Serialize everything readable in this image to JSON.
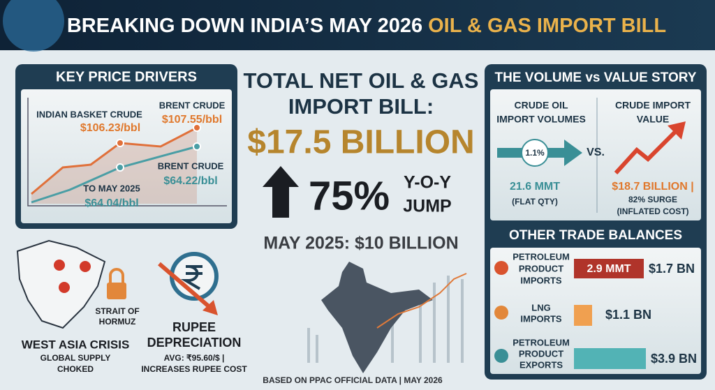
{
  "header": {
    "title": "BREAKING DOWN INDIA’S MAY 2026",
    "title_highlight": "OIL & GAS IMPORT BILL"
  },
  "price_drivers": {
    "title": "KEY PRICE DRIVERS",
    "indian_basket": {
      "label": "INDIAN BASKET CRUDE",
      "price": "$106.23/bbl"
    },
    "brent_now": {
      "label": "BRENT CRUDE",
      "price": "$107.55/bbl"
    },
    "brent_prev": {
      "label": "BRENT CRUDE",
      "price": "$64.22/bbl"
    },
    "basket_prev": {
      "label": "TO MAY 2025",
      "price": "$64.04/bbl"
    }
  },
  "headline": {
    "lines": [
      "TOTAL NET OIL & GAS",
      "IMPORT BILL:"
    ],
    "amount": "$17.5 BILLION",
    "growth": "75%",
    "growth_note": [
      "Y-O-Y",
      "JUMP"
    ],
    "previous": "MAY 2025: $10 BILLION",
    "source": "BASED ON PPAC OFFICIAL DATA | MAY 2026"
  },
  "west_asia": {
    "strait": [
      "STRAIT OF",
      "HORMUZ"
    ],
    "title": "WEST ASIA CRISIS",
    "text": [
      "GLOBAL SUPPLY",
      "CHOKED"
    ]
  },
  "rupee": {
    "title": [
      "RUPEE",
      "DEPRECIATION"
    ],
    "text": [
      "AVG: ₹95.60/$ |",
      "INCREASES RUPEE COST"
    ]
  },
  "volume_value": {
    "title": "THE VOLUME vs VALUE STORY",
    "volume": {
      "heading": [
        "CRUDE OIL",
        "IMPORT VOLUMES"
      ],
      "change": "1.1%",
      "amount": "21.6 MMT",
      "note": "(FLAT QTY)"
    },
    "vs": "VS.",
    "value": {
      "heading": [
        "CRUDE IMPORT",
        "VALUE"
      ],
      "amount": "$18.7 BILLION |",
      "note": [
        "82% SURGE",
        "(INFLATED COST)"
      ]
    }
  },
  "trade_balances": {
    "title": "OTHER TRADE BALANCES",
    "rows": [
      {
        "label": [
          "PETROLEUM",
          "PRODUCT",
          "IMPORTS"
        ],
        "quantity": "2.9 MMT",
        "value": "$1.7 BN"
      },
      {
        "label": [
          "LNG",
          "IMPORTS"
        ],
        "value": "$1.1 BN"
      },
      {
        "label": [
          "PETROLEUM",
          "PRODUCT",
          "EXPORTS"
        ],
        "value": "$3.9 BN"
      }
    ]
  }
}
